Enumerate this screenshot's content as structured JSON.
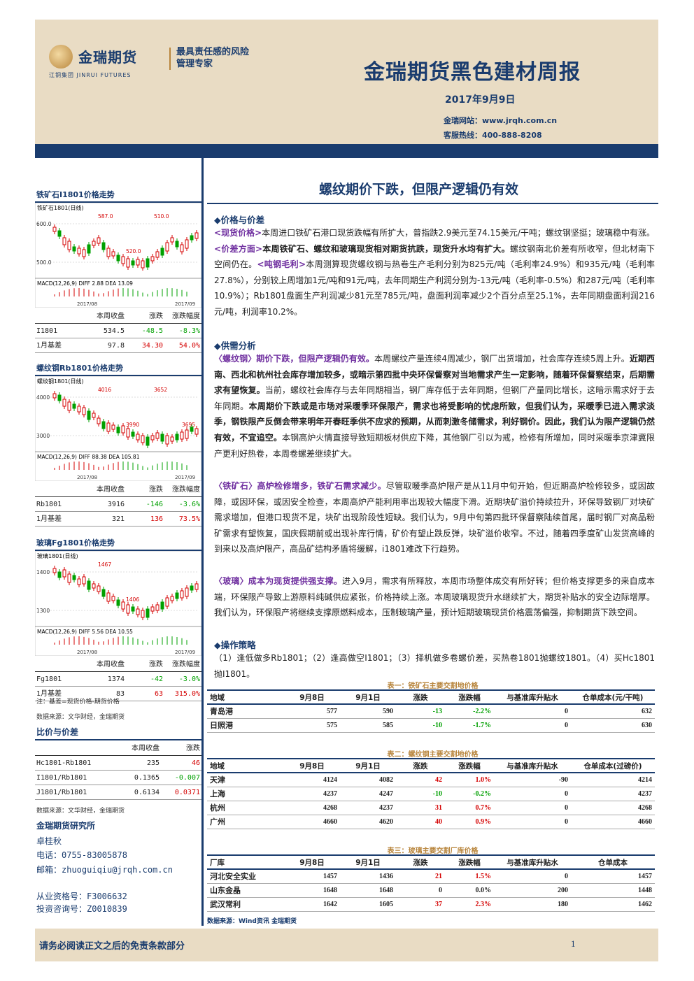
{
  "header": {
    "brand": "金瑞期货",
    "brand_sub": "江铜集团  JINRUI FUTURES",
    "slogan": "最具责任感的风险管理专家",
    "report_title": "金瑞期货黑色建材周报",
    "date": "2017年9月9日",
    "website": "金瑞网站：www.jrqh.com.cn",
    "hotline": "客服热线：400-888-8208"
  },
  "left": {
    "charts": [
      {
        "title": "铁矿石I1801价格走势",
        "header_text": "铁矿石1801(日线)",
        "y_ticks": [
          "600.0",
          "500.0"
        ],
        "labels": {
          "peak": "587.0",
          "low": "520.0",
          "last": "510.0"
        },
        "indicator": "MACD(12,26,9)  DIFF  2.88   DEA  13.09",
        "x_ticks": [
          "2017/08",
          "2017/09"
        ],
        "table": {
          "head": [
            "本周收盘",
            "涨跌",
            "涨跌幅度"
          ],
          "rows": [
            {
              "name": "I1801",
              "close": "534.5",
              "chg": "-48.5",
              "pct": "-8.3%",
              "color": "green"
            },
            {
              "name": "1月基差",
              "close": "97.8",
              "chg": "34.30",
              "pct": "54.0%",
              "color": "red"
            }
          ]
        }
      },
      {
        "title": "螺纹钢Rb1801价格走势",
        "header_text": "螺纹钢1801(日线)",
        "y_ticks": [
          "4000",
          "3000"
        ],
        "labels": {
          "peak": "4016",
          "mid": "3990",
          "last": "3652",
          "low": "3695"
        },
        "indicator": "MACD(12,26,9)  DIFF  88.38   DEA  105.81",
        "x_ticks": [
          "2017/08",
          "2017/09"
        ],
        "table": {
          "head": [
            "本周收盘",
            "涨跌",
            "涨跌幅度"
          ],
          "rows": [
            {
              "name": "Rb1801",
              "close": "3916",
              "chg": "-146",
              "pct": "-3.6%",
              "color": "green"
            },
            {
              "name": "1月基差",
              "close": "321",
              "chg": "136",
              "pct": "73.5%",
              "color": "red"
            }
          ]
        }
      },
      {
        "title": "玻璃Fg1801价格走势",
        "header_text": "玻璃1801(日线)",
        "y_ticks": [
          "1400",
          "1300"
        ],
        "labels": {
          "peak": "1467",
          "last": "1406"
        },
        "indicator": "MACD(12,26,9)  DIFF  5.56   DEA  10.55",
        "x_ticks": [
          "2017/08",
          "2017/09"
        ],
        "table": {
          "head": [
            "本周收盘",
            "涨跌",
            "涨跌幅度"
          ],
          "rows": [
            {
              "name": "Fg1801",
              "close": "1374",
              "chg": "-42",
              "pct": "-3.0%",
              "color": "green"
            },
            {
              "name": "1月基差",
              "close": "83",
              "chg": "63",
              "pct": "315.0%",
              "color": "red"
            }
          ]
        }
      }
    ],
    "note_basis": "注：基差=现货价格-期货价格",
    "note_source1": "数据来源：文华财经，金瑞期货",
    "cmp_title": "比价与价差",
    "cmp_head": [
      "本周收盘",
      "涨跌"
    ],
    "cmp_rows": [
      {
        "name": "Hc1801-Rb1801",
        "close": "235",
        "chg": "46",
        "color": "red"
      },
      {
        "name": "I1801/Rb1801",
        "close": "0.1365",
        "chg": "-0.007",
        "color": "green"
      },
      {
        "name": "J1801/Rb1801",
        "close": "0.6134",
        "chg": "0.0371",
        "color": "red"
      }
    ],
    "note_source2": "数据来源：文华财经，金瑞期货",
    "contact": {
      "org": "金瑞期货研究所",
      "name": "卓桂秋",
      "phone": "电话：0755-83005878",
      "email": "邮箱：zhuoguiqiu@jrqh.com.cn",
      "qual": "从业资格号：F3006632",
      "invest": "投资咨询号：Z0010839"
    }
  },
  "main": {
    "title": "螺纹期价下跌，但限产逻辑仍有效",
    "sec1": "◆价格与价差",
    "sec2": "◆供需分析",
    "sec3": "◆操作策略",
    "p1": {
      "t1": "<现货价格>",
      "s1": "本周进口铁矿石港口现货跌幅有所扩大，普指跌2.9美元至74.15美元/干吨；螺纹钢坚挺；玻璃稳中有涨。",
      "t2": "<价差方面>",
      "b2": "本周铁矿石、螺纹和玻璃现货相对期货抗跌，现货升水均有扩大。",
      "s2": "螺纹钢南北价差有所收窄，但北材南下空间仍在。",
      "t3": "<吨钢毛利>",
      "s3": "本周测算现货螺纹钢与热卷生产毛利分别为825元/吨（毛利率24.9%）和935元/吨（毛利率27.8%），分别较上周增加1元/吨和91元/吨，去年同期生产利润分别为-13元/吨（毛利率-0.5%）和287元/吨（毛利率10.9%）；Rb1801盘面生产利润减少81元至785元/吨，盘面利润率减少2个百分点至25.1%，去年同期盘面利润216元/吨，利润率10.2%。"
    },
    "p2": {
      "t1": "〈螺纹钢〉期价下跌，但限产逻辑仍有效。",
      "s1": "本周螺纹产量连续4周减少，钢厂出货增加，社会库存连续5周上升。",
      "b1": "近期西南、西北和杭州社会库存增加较多，或暗示第四批中央环保督察对当地需求产生一定影响，随着环保督察结束，后期需求有望恢复。",
      "s2": "当前，螺纹社会库存与去年同期相当，钢厂库存低于去年同期，但钢厂产量同比增长，这暗示需求好于去年同期。",
      "b2": "本周期价下跌或是市场对采暖季环保限产，需求也将受影响的忧虑所致，但我们认为，采暖季已进入需求淡季，钢铁限产反倒会带来明年开春旺季供不应求的预期，从而刺激冬储需求，利好钢价。因此，我们认为限产逻辑仍然有效，不宜追空。",
      "s3": "本钢高炉火情直接导致短期板材供应下降，其他钢厂引以为戒，检修有所增加，同时采暖季京津冀限产更利好热卷，本周卷螺差继续扩大。"
    },
    "p3": {
      "t1": "〈铁矿石〉高炉检修增多，铁矿石需求减少。",
      "s1": "尽管取暖季高炉限产是从11月中旬开始，但近期高炉检修较多，或因故障，或因环保，或因安全检查，本周高炉产能利用率出现较大幅度下滑。近期块矿溢价持续拉升，环保导致钢厂对块矿需求增加，但港口现货不足，块矿出现阶段性短缺。我们认为，9月中旬第四批环保督察陆续首尾，届时钢厂对高品粉矿需求有望恢复，国庆假期前或出现补库行情，矿价有望止跌反弹，块矿溢价收窄。不过，随着四季度矿山发货高峰的到来以及高炉限产，高品矿结构矛盾将缓解，i1801难改下行趋势。"
    },
    "p4": {
      "t1": "〈玻璃〉成本为现货提供强支撑。",
      "s1": "进入9月，需求有所释放，本周市场整体成交有所好转；但价格支撑更多的来自成本端，环保限产导致上游原料纯碱供应紧张，价格持续上涨。本周玻璃现货升水继续扩大，期货补贴水的安全边际增厚。我们认为，环保限产将继续支撑原燃料成本，压制玻璃产量，预计短期玻璃现货价格震荡偏强，抑制期货下跌空间。"
    },
    "p5": "（1）逢低做多Rb1801；（2）逢高做空I1801；（3）择机做多卷螺价差，买热卷1801抛螺纹1801。（4）买Hc1801抛I1801。",
    "tables": [
      {
        "title": "表一：铁矿石主要交割地价格",
        "head": [
          "地域",
          "9月8日",
          "9月1日",
          "涨跌",
          "涨跌幅",
          "与基准库升贴水",
          "仓单成本(元/干吨)"
        ],
        "rows": [
          [
            "青岛港",
            "577",
            "590",
            "-13",
            "-2.2%",
            "0",
            "632"
          ],
          [
            "日照港",
            "575",
            "585",
            "-10",
            "-1.7%",
            "0",
            "630"
          ]
        ]
      },
      {
        "title": "表二：螺纹钢主要交割地价格",
        "head": [
          "地域",
          "9月8日",
          "9月1日",
          "涨跌",
          "涨跌幅",
          "与基准库升贴水",
          "仓单成本(过磅价)"
        ],
        "rows": [
          [
            "天津",
            "4124",
            "4082",
            "42",
            "1.0%",
            "-90",
            "4214"
          ],
          [
            "上海",
            "4237",
            "4247",
            "-10",
            "-0.2%",
            "0",
            "4237"
          ],
          [
            "杭州",
            "4268",
            "4237",
            "31",
            "0.7%",
            "0",
            "4268"
          ],
          [
            "广州",
            "4660",
            "4620",
            "40",
            "0.9%",
            "0",
            "4660"
          ]
        ]
      },
      {
        "title": "表三：玻璃主要交割厂库价格",
        "head": [
          "厂库",
          "9月8日",
          "9月1日",
          "涨跌",
          "涨跌幅",
          "与基准库升贴水",
          "仓单成本"
        ],
        "rows": [
          [
            "河北安全实业",
            "1457",
            "1436",
            "21",
            "1.5%",
            "0",
            "1457"
          ],
          [
            "山东金晶",
            "1648",
            "1648",
            "0",
            "0.0%",
            "200",
            "1448"
          ],
          [
            "武汉常利",
            "1642",
            "1605",
            "37",
            "2.3%",
            "180",
            "1462"
          ]
        ]
      }
    ],
    "table_source": "数据来源：Wind资讯  金瑞期货"
  },
  "footer": {
    "text": "请务必阅读正文之后的免责条款部分",
    "page": "1"
  },
  "colors": {
    "brand": "#1a3c6e",
    "header_bg": "#e9dcc4",
    "up": "#d40000",
    "down": "#00a000",
    "tag": "#7030a0",
    "gold": "#b8853c"
  }
}
